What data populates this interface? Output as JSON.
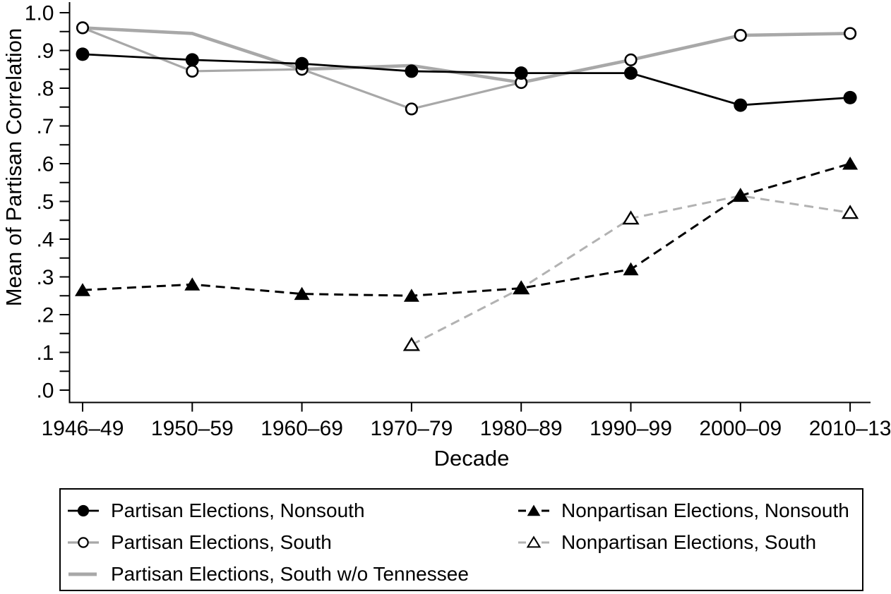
{
  "figure": {
    "background_color": "#ffffff",
    "axis_color": "#000000"
  },
  "chart_data": {
    "type": "line",
    "title": "",
    "xlabel": "Decade",
    "ylabel": "Mean of Partisan Correlation",
    "categories": [
      "1946–49",
      "1950–59",
      "1960–69",
      "1970–79",
      "1980–89",
      "1990–99",
      "2000–09",
      "2010–13"
    ],
    "ylim": [
      0.0,
      1.0
    ],
    "ytick_minor_step": 0.05,
    "grid": false,
    "legend_position": "bottom",
    "ytick_labels": [
      {
        "v": 0.0,
        "label": ".0"
      },
      {
        "v": 0.1,
        "label": ".1"
      },
      {
        "v": 0.2,
        "label": ".2"
      },
      {
        "v": 0.3,
        "label": ".3"
      },
      {
        "v": 0.4,
        "label": ".4"
      },
      {
        "v": 0.5,
        "label": ".5"
      },
      {
        "v": 0.6,
        "label": ".6"
      },
      {
        "v": 0.7,
        "label": ".7"
      },
      {
        "v": 0.8,
        "label": ".8"
      },
      {
        "v": 0.9,
        "label": ".9"
      },
      {
        "v": 1.0,
        "label": "1.0"
      }
    ],
    "series": [
      {
        "name": "Partisan Elections, Nonsouth",
        "color": "#000000",
        "line_style": "solid",
        "line_width": 2.8,
        "marker": "circle-filled",
        "values": [
          0.89,
          0.875,
          0.865,
          0.845,
          0.84,
          0.84,
          0.755,
          0.775
        ]
      },
      {
        "name": "Partisan Elections, South",
        "color": "#a8a8a8",
        "line_style": "solid",
        "line_width": 3.2,
        "marker": "circle-open",
        "marker_stroke": "#000000",
        "values": [
          0.96,
          0.845,
          0.85,
          0.745,
          0.815,
          0.875,
          0.94,
          0.945
        ]
      },
      {
        "name": "Partisan Elections, South w/o Tennessee",
        "color": "#a8a8a8",
        "line_style": "solid",
        "line_width": 4.6,
        "marker": "none",
        "values": [
          0.96,
          0.945,
          0.85,
          0.86,
          0.815,
          0.875,
          0.94,
          0.945
        ]
      },
      {
        "name": "Nonpartisan Elections, Nonsouth",
        "color": "#000000",
        "line_style": "dashed",
        "line_width": 3.0,
        "marker": "triangle-filled",
        "values": [
          0.265,
          0.28,
          0.255,
          0.25,
          0.27,
          0.32,
          0.515,
          0.6
        ]
      },
      {
        "name": "Nonpartisan Elections, South",
        "color": "#b2b2b2",
        "line_style": "dashed",
        "line_width": 3.0,
        "marker": "triangle-open",
        "marker_stroke": "#000000",
        "values": [
          null,
          null,
          null,
          0.12,
          0.27,
          0.455,
          0.515,
          0.47
        ]
      }
    ],
    "legend_columns": [
      [
        0,
        1,
        2
      ],
      [
        3,
        4
      ]
    ]
  }
}
